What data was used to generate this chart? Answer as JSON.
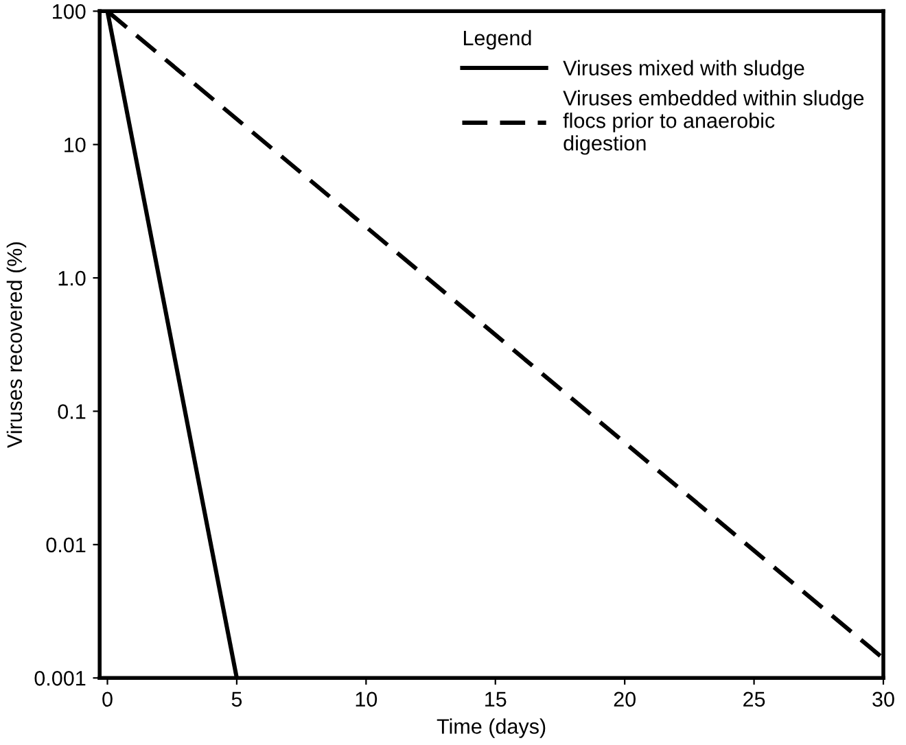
{
  "chart_data": {
    "type": "line",
    "xlabel": "Time (days)",
    "ylabel": "Viruses recovered (%)",
    "legend_title": "Legend",
    "legend": "top right",
    "log": "y",
    "grid": false,
    "marker": "none",
    "xlim": [
      -0.3,
      30
    ],
    "xticks": [
      0,
      5,
      10,
      15,
      20,
      25,
      30
    ],
    "ylim": [
      0.001,
      100
    ],
    "yticks": [
      {
        "value": 0.001,
        "label": "0.001"
      },
      {
        "value": 0.01,
        "label": "0.01"
      },
      {
        "value": 0.1,
        "label": "0.1"
      },
      {
        "value": 1,
        "label": "1.0"
      },
      {
        "value": 10,
        "label": "10"
      },
      {
        "value": 100,
        "label": "100"
      }
    ],
    "series": [
      {
        "name": "Viruses mixed with sludge",
        "color": "#000000",
        "line_style": "solid",
        "x": [
          0,
          5
        ],
        "values": [
          100,
          0.001
        ]
      },
      {
        "name": "Viruses embedded within sludge\nflocs prior to anaerobic\ndigestion",
        "color": "#000000",
        "line_style": "dashed",
        "x": [
          0,
          30
        ],
        "values": [
          100,
          0.0014
        ]
      }
    ]
  }
}
